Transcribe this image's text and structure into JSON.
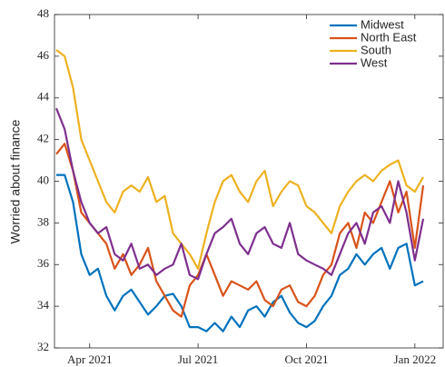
{
  "chart_data": {
    "type": "line",
    "y_label": "Worried about finance",
    "categories": [
      null,
      null,
      null,
      null,
      "Apr 2021",
      null,
      null,
      null,
      null,
      null,
      null,
      null,
      null,
      null,
      null,
      null,
      null,
      "Jul 2021",
      null,
      null,
      null,
      null,
      null,
      null,
      null,
      null,
      null,
      null,
      null,
      null,
      "Oct 2021",
      null,
      null,
      null,
      null,
      null,
      null,
      null,
      null,
      null,
      null,
      null,
      null,
      "Jan 2022",
      null
    ],
    "series": [
      {
        "name": "Midwest",
        "color": "#0072BD",
        "values": [
          40.3,
          40.3,
          39,
          36.5,
          35.5,
          35.8,
          34.5,
          33.8,
          34.5,
          34.8,
          34.2,
          33.6,
          34.0,
          34.5,
          34.6,
          34.0,
          33.0,
          33.0,
          32.8,
          33.2,
          32.8,
          33.5,
          33.0,
          33.8,
          34.0,
          33.5,
          34.2,
          34.5,
          33.7,
          33.2,
          33.0,
          33.3,
          34.0,
          34.5,
          35.5,
          35.8,
          36.5,
          36.0,
          36.5,
          36.8,
          35.8,
          36.8,
          37.0,
          35.0,
          35.2
        ]
      },
      {
        "name": "North East",
        "color": "#D95319",
        "values": [
          41.3,
          41.8,
          40.5,
          38.5,
          38.0,
          37.5,
          37.0,
          35.8,
          36.5,
          35.5,
          36.0,
          36.8,
          35.2,
          34.5,
          33.8,
          33.5,
          35.0,
          35.5,
          36.5,
          35.5,
          34.5,
          35.2,
          35.0,
          34.8,
          35.2,
          34.3,
          34.0,
          34.8,
          35.0,
          34.2,
          34.0,
          34.5,
          35.5,
          36.0,
          37.5,
          38.0,
          36.8,
          38.5,
          38.0,
          39.0,
          40.0,
          38.5,
          39.5,
          36.8,
          39.8
        ]
      },
      {
        "name": "South",
        "color": "#EDB120",
        "values": [
          46.3,
          46.0,
          44.5,
          42.0,
          41.0,
          40.0,
          39.0,
          38.5,
          39.5,
          39.8,
          39.5,
          40.2,
          39.0,
          39.3,
          37.5,
          37.0,
          36.5,
          35.8,
          37.5,
          39.0,
          40.0,
          40.3,
          39.5,
          39.0,
          40.0,
          40.5,
          38.8,
          39.5,
          40.0,
          39.8,
          38.8,
          38.5,
          38.0,
          37.5,
          38.8,
          39.5,
          40.0,
          40.3,
          40.0,
          40.5,
          40.8,
          41.0,
          39.8,
          39.5,
          40.2
        ]
      },
      {
        "name": "West",
        "color": "#7E2F8E",
        "values": [
          43.5,
          42.5,
          40.5,
          39.0,
          38.0,
          37.5,
          37.8,
          36.5,
          36.2,
          37.0,
          35.8,
          36.0,
          35.5,
          35.8,
          36.0,
          37.0,
          35.5,
          35.3,
          36.5,
          37.5,
          37.8,
          38.2,
          37.0,
          36.5,
          37.5,
          37.8,
          37.0,
          36.8,
          38.0,
          36.5,
          36.2,
          36.0,
          35.8,
          35.5,
          36.5,
          37.5,
          38.0,
          37.0,
          38.5,
          38.8,
          38.0,
          40.0,
          38.5,
          36.2,
          38.2
        ]
      }
    ],
    "ylim": [
      32,
      48
    ],
    "yticks": [
      32,
      34,
      36,
      38,
      40,
      42,
      44,
      46,
      48
    ],
    "legend": "top-right"
  }
}
